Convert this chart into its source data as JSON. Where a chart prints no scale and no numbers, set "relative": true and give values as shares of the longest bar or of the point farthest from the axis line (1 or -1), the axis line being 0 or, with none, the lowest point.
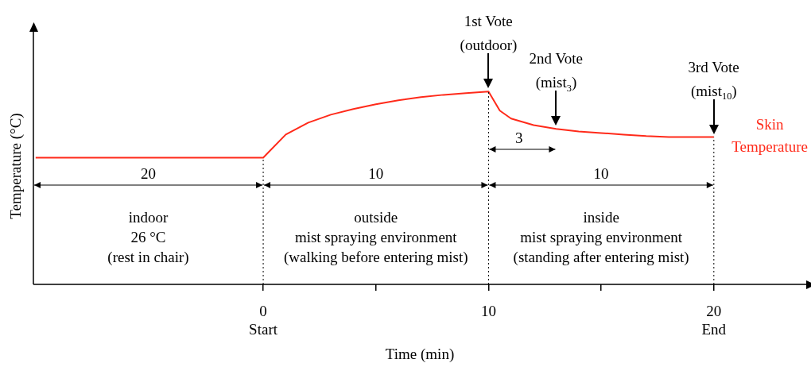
{
  "chart_data": {
    "type": "line",
    "relative": true,
    "xlabel": "Time (min)",
    "ylabel": "Temperature (°C)",
    "xlim": [
      -10.2,
      24.1
    ],
    "xticks": [
      {
        "value": 0,
        "label": "0\nStart"
      },
      {
        "value": 5,
        "label": null
      },
      {
        "value": 10,
        "label": "10"
      },
      {
        "value": 15,
        "label": null
      },
      {
        "value": 20,
        "label": "20\nEnd"
      }
    ],
    "x": [
      -10.1,
      0,
      1,
      2,
      3,
      4,
      5,
      6,
      7,
      8,
      9,
      10,
      10.5,
      11,
      12,
      13,
      14,
      15,
      16,
      17,
      18,
      19,
      20
    ],
    "series": [
      {
        "name": "Skin Temperature",
        "color": "#ff2a1a",
        "values": [
          0.657,
          0.657,
          0.777,
          0.839,
          0.88,
          0.909,
          0.934,
          0.955,
          0.971,
          0.983,
          0.992,
          1,
          0.901,
          0.86,
          0.826,
          0.806,
          0.793,
          0.785,
          0.777,
          0.769,
          0.764,
          0.764,
          0.764
        ]
      }
    ],
    "ref_lines": [
      {
        "axis": "x",
        "value": 0,
        "color": "#000000",
        "line_style": "dotted"
      },
      {
        "axis": "x",
        "value": 10,
        "color": "#000000",
        "line_style": "dotted"
      },
      {
        "axis": "x",
        "value": 20,
        "color": "#000000",
        "line_style": "dotted"
      }
    ],
    "annotations": [
      {
        "text": "1st Vote\n(outdoor)",
        "x": 10,
        "y": 1
      },
      {
        "text": "2nd Vote\n(mist$_{3}$)",
        "x": 13,
        "y": 0.806
      },
      {
        "text": "3rd Vote\n(mist$_{10}$)",
        "x": 20,
        "y": 0.764
      },
      "20",
      "10",
      "10",
      "3",
      "indoor\n26 °C\n(rest in chair)",
      "outside\nmist spraying environment\n(walking before entering mist)",
      "inside\nmist spraying environment\n(standing after entering mist)"
    ],
    "grid": false,
    "legend": false,
    "marker": "none",
    "line_style": "solid"
  }
}
